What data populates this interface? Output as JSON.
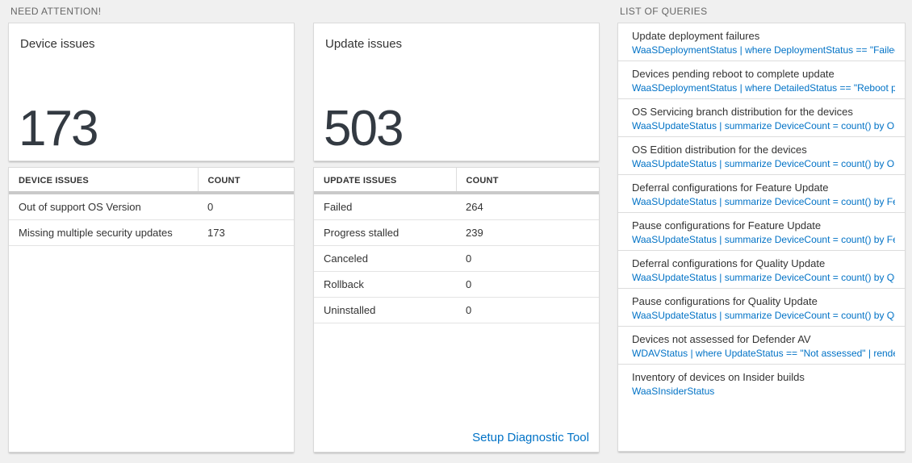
{
  "colors": {
    "accent_blue": "#0072c6",
    "big_number": "#333a42",
    "page_background": "#f0f0f0"
  },
  "sections": {
    "need_attention": {
      "title": "NEED ATTENTION!"
    },
    "list_of_queries": {
      "title": "LIST OF QUERIES"
    }
  },
  "device_issues_card": {
    "title": "Device issues",
    "count": "173"
  },
  "device_issues_table": {
    "headers": [
      "DEVICE ISSUES",
      "COUNT"
    ],
    "rows": [
      [
        "Out of support OS Version",
        "0"
      ],
      [
        "Missing multiple security updates",
        "173"
      ]
    ]
  },
  "update_issues_card": {
    "title": "Update issues",
    "count": "503"
  },
  "update_issues_table": {
    "headers": [
      "UPDATE ISSUES",
      "COUNT"
    ],
    "rows": [
      [
        "Failed",
        "264"
      ],
      [
        "Progress stalled",
        "239"
      ],
      [
        "Canceled",
        "0"
      ],
      [
        "Rollback",
        "0"
      ],
      [
        "Uninstalled",
        "0"
      ]
    ],
    "footer_link": "Setup Diagnostic Tool"
  },
  "queries": [
    {
      "title": "Update deployment failures",
      "query": "WaaSDeploymentStatus | where DeploymentStatus == \"Failed\" |..."
    },
    {
      "title": "Devices pending reboot to complete update",
      "query": "WaaSDeploymentStatus | where DetailedStatus == \"Reboot pend..."
    },
    {
      "title": "OS Servicing branch distribution for the devices",
      "query": "WaaSUpdateStatus | summarize DeviceCount = count() by OSSer..."
    },
    {
      "title": "OS Edition distribution for the devices",
      "query": "WaaSUpdateStatus | summarize DeviceCount = count() by OSEdit..."
    },
    {
      "title": "Deferral configurations for Feature Update",
      "query": "WaaSUpdateStatus | summarize DeviceCount = count() by Featur..."
    },
    {
      "title": "Pause configurations for Feature Update",
      "query": "WaaSUpdateStatus | summarize DeviceCount = count() by Featur..."
    },
    {
      "title": "Deferral configurations for Quality Update",
      "query": "WaaSUpdateStatus | summarize DeviceCount = count() by Qualit..."
    },
    {
      "title": "Pause configurations for Quality Update",
      "query": "WaaSUpdateStatus | summarize DeviceCount = count() by Qualit..."
    },
    {
      "title": "Devices not assessed for Defender AV",
      "query": "WDAVStatus | where UpdateStatus == \"Not assessed\" | render ta..."
    },
    {
      "title": "Inventory of devices on Insider builds",
      "query": "WaaSInsiderStatus"
    }
  ]
}
